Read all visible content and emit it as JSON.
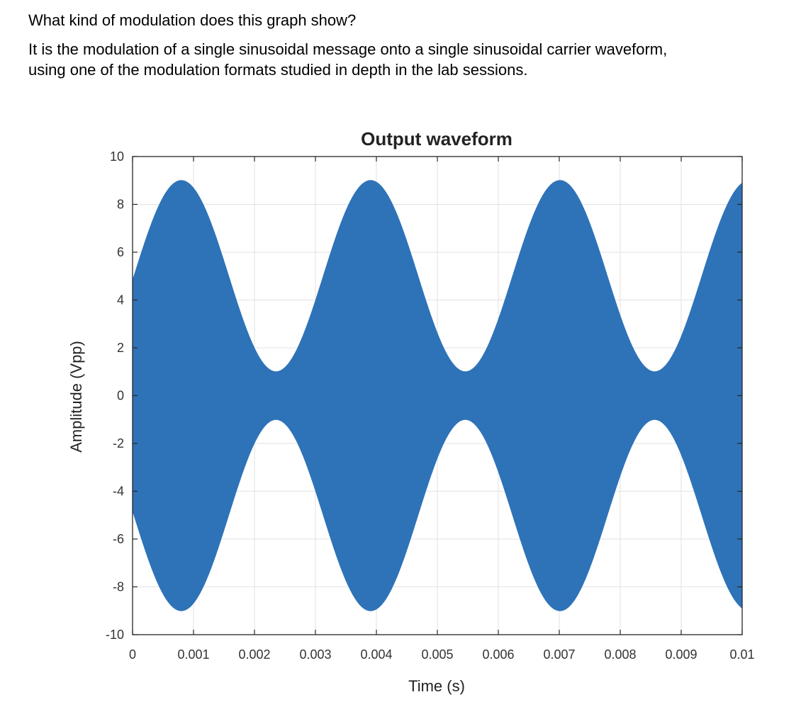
{
  "question": {
    "line1": "What kind of modulation does this graph show?",
    "line2": "It is the modulation of a single sinusoidal message onto a single sinusoidal carrier waveform,",
    "line3": "using one of the modulation formats studied in depth in the lab sessions."
  },
  "chart_data": {
    "type": "area",
    "title": "Output waveform",
    "xlabel": "Time (s)",
    "ylabel": "Amplitude (Vpp)",
    "xlim": [
      0,
      0.01
    ],
    "ylim": [
      -10,
      10
    ],
    "x_ticks": [
      "0",
      "0.001",
      "0.002",
      "0.003",
      "0.004",
      "0.005",
      "0.006",
      "0.007",
      "0.008",
      "0.009",
      "0.01"
    ],
    "y_ticks": [
      "10",
      "8",
      "6",
      "4",
      "2",
      "0",
      "-2",
      "-4",
      "-6",
      "-8",
      "-10"
    ],
    "grid": true,
    "series": [
      {
        "color": "#2e73b8",
        "carrier_amplitude": 5,
        "message_amplitude": 4,
        "message_frequency_hz": 322,
        "envelope_peak_times": [
          0.0008,
          0.0039,
          0.007
        ],
        "envelope_max": 9,
        "envelope_min": 1
      }
    ]
  }
}
